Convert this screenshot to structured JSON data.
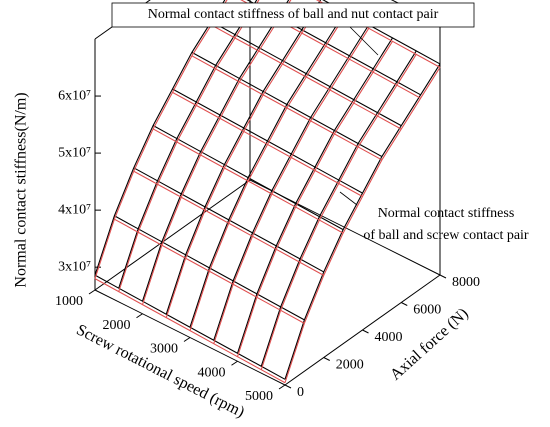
{
  "chart_data": {
    "type": "surface3d",
    "xlabel": "Screw rotational speed (rpm)",
    "ylabel": "Axial force (N)",
    "zlabel": "Normal contact stiffness(N/m)",
    "annotations": [
      "Normal contact stiffness of ball and nut contact pair",
      "Normal contact stiffness",
      "of ball and screw contact pair"
    ],
    "x": [
      1000,
      1500,
      2000,
      2500,
      3000,
      3500,
      4000,
      4500,
      5000
    ],
    "y": [
      0,
      1000,
      2000,
      3000,
      4000,
      5000,
      6000,
      7000,
      8000
    ],
    "xlim": [
      1000,
      5000
    ],
    "xticks": [
      1000,
      2000,
      3000,
      4000,
      5000
    ],
    "ylim": [
      0,
      8000
    ],
    "yticks": [
      0,
      2000,
      4000,
      6000,
      8000
    ],
    "zlim": [
      26000000,
      70000000
    ],
    "zticks": [
      {
        "value": 30000000,
        "label": "3x10⁷"
      },
      {
        "value": 40000000,
        "label": "4x10⁷"
      },
      {
        "value": 50000000,
        "label": "5x10⁷"
      },
      {
        "value": 60000000,
        "label": "6x10⁷"
      }
    ],
    "series": [
      {
        "color": "#000000",
        "values": [
          [
            28600000,
            36600000,
            42600000,
            47600000,
            51600000,
            55600000,
            58600000,
            61600000,
            64600000
          ],
          [
            28400000,
            36400000,
            42400000,
            47400000,
            51400000,
            55400000,
            58400000,
            61400000,
            64400000
          ],
          [
            28200000,
            36200000,
            42200000,
            47200000,
            51200000,
            55200000,
            58200000,
            61200000,
            64200000
          ],
          [
            28000000,
            36000000,
            42000000,
            47000000,
            51000000,
            55000000,
            58000000,
            61000000,
            64000000
          ],
          [
            27800000,
            35800000,
            41800000,
            46800000,
            50800000,
            54800000,
            57800000,
            60800000,
            63800000
          ],
          [
            27600000,
            35600000,
            41600000,
            46600000,
            50600000,
            54600000,
            57600000,
            60600000,
            63600000
          ],
          [
            27400000,
            35400000,
            41400000,
            46400000,
            50400000,
            54400000,
            57400000,
            60400000,
            63400000
          ],
          [
            27200000,
            35200000,
            41200000,
            46200000,
            50200000,
            54200000,
            57200000,
            60200000,
            63200000
          ],
          [
            27000000,
            35000000,
            41000000,
            46000000,
            50000000,
            54000000,
            57000000,
            60000000,
            63000000
          ]
        ]
      },
      {
        "color": "#e05050",
        "values": [
          [
            28000000,
            36000000,
            42000000,
            47000000,
            51000000,
            55000000,
            58000000,
            61000000,
            64000000
          ],
          [
            27800000,
            35800000,
            41800000,
            46800000,
            50800000,
            54800000,
            57800000,
            60800000,
            63800000
          ],
          [
            27600000,
            35600000,
            41600000,
            46600000,
            50600000,
            54600000,
            57600000,
            60600000,
            63600000
          ],
          [
            27400000,
            35400000,
            41400000,
            46400000,
            50400000,
            54400000,
            57400000,
            60400000,
            63400000
          ],
          [
            27200000,
            35200000,
            41200000,
            46200000,
            50200000,
            54200000,
            57200000,
            60200000,
            63200000
          ],
          [
            27000000,
            35000000,
            41000000,
            46000000,
            50000000,
            54000000,
            57000000,
            60000000,
            63000000
          ],
          [
            26800000,
            34800000,
            40800000,
            45800000,
            49800000,
            53800000,
            56800000,
            59800000,
            62800000
          ],
          [
            26600000,
            34600000,
            40600000,
            45600000,
            49600000,
            53600000,
            56600000,
            59600000,
            62600000
          ],
          [
            26400000,
            34400000,
            40400000,
            45400000,
            49400000,
            53400000,
            56400000,
            59400000,
            62400000
          ]
        ]
      }
    ]
  }
}
